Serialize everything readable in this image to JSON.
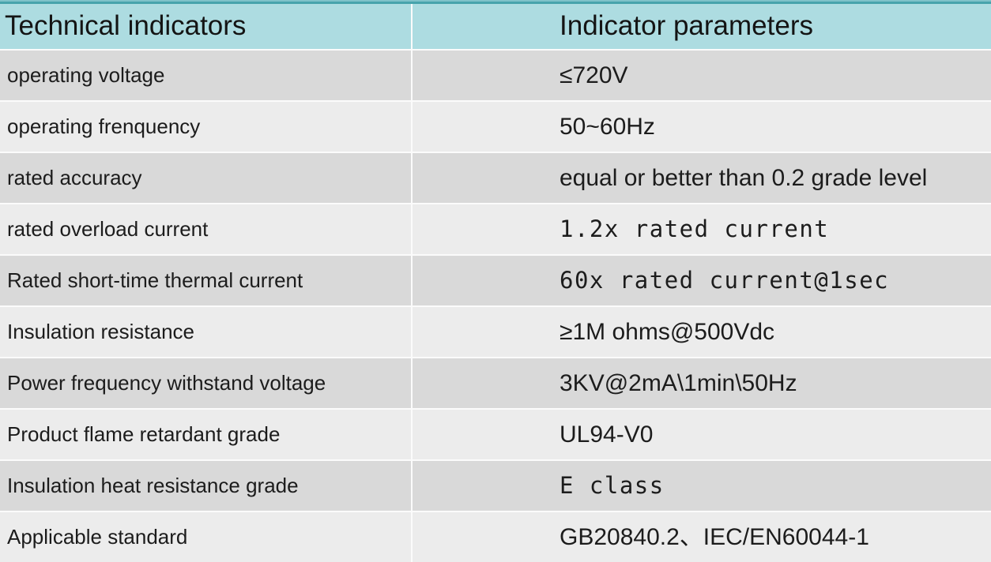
{
  "table": {
    "header": {
      "col1": "Technical indicators",
      "col2": "Indicator parameters"
    },
    "rows": [
      {
        "label": "operating voltage",
        "value": "≤720V"
      },
      {
        "label": "operating frenquency",
        "value": "50~60Hz"
      },
      {
        "label": "rated accuracy",
        "value": "equal or better than 0.2 grade level"
      },
      {
        "label": "rated overload current",
        "value": "1.2x rated current"
      },
      {
        "label": "Rated short-time thermal current",
        "value": "60x rated current@1sec"
      },
      {
        "label": "Insulation resistance",
        "value": "≥1M ohms@500Vdc"
      },
      {
        "label": "Power frequency withstand voltage",
        "value": "3KV@2mA\\1min\\50Hz"
      },
      {
        "label": "Product flame retardant grade",
        "value": "UL94-V0"
      },
      {
        "label": "Insulation heat resistance grade",
        "value": "E class"
      },
      {
        "label": "Applicable standard",
        "value": "GB20840.2、IEC/EN60044-1"
      }
    ],
    "colors": {
      "headerBg": "#addce1",
      "stripeLight": "#7fc2c9",
      "stripeDark": "#47a3ac",
      "rowDark": "#d9d9d9",
      "rowLight": "#ececec",
      "divider": "#fbfbfb",
      "text": "#1c1c1c"
    }
  }
}
